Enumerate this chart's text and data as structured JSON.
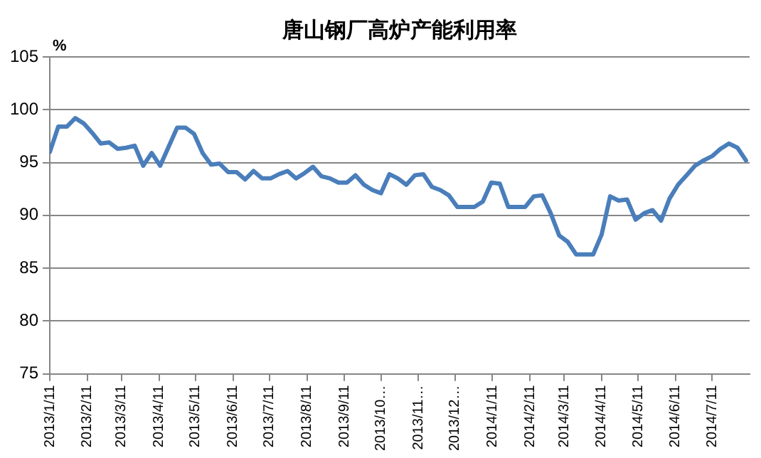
{
  "chart_data": {
    "type": "line",
    "title": "唐山钢厂高炉产能利用率",
    "ylabel": "%",
    "x": [
      "2013-01-11",
      "2013-01-18",
      "2013-01-25",
      "2013-02-01",
      "2013-02-08",
      "2013-02-15",
      "2013-02-22",
      "2013-03-01",
      "2013-03-08",
      "2013-03-15",
      "2013-03-22",
      "2013-03-29",
      "2013-04-05",
      "2013-04-12",
      "2013-04-19",
      "2013-04-26",
      "2013-05-03",
      "2013-05-10",
      "2013-05-17",
      "2013-05-24",
      "2013-05-31",
      "2013-06-07",
      "2013-06-14",
      "2013-06-21",
      "2013-06-28",
      "2013-07-05",
      "2013-07-12",
      "2013-07-19",
      "2013-07-26",
      "2013-08-02",
      "2013-08-09",
      "2013-08-16",
      "2013-08-23",
      "2013-08-30",
      "2013-09-06",
      "2013-09-13",
      "2013-09-20",
      "2013-09-27",
      "2013-10-04",
      "2013-10-11",
      "2013-10-18",
      "2013-10-25",
      "2013-11-01",
      "2013-11-08",
      "2013-11-15",
      "2013-11-22",
      "2013-11-29",
      "2013-12-06",
      "2013-12-13",
      "2013-12-20",
      "2013-12-27",
      "2014-01-03",
      "2014-01-10",
      "2014-01-17",
      "2014-01-24",
      "2014-01-31",
      "2014-02-07",
      "2014-02-14",
      "2014-02-21",
      "2014-02-28",
      "2014-03-07",
      "2014-03-14",
      "2014-03-21",
      "2014-03-28",
      "2014-04-04",
      "2014-04-11",
      "2014-04-18",
      "2014-04-25",
      "2014-05-02",
      "2014-05-09",
      "2014-05-16",
      "2014-05-23",
      "2014-05-30",
      "2014-06-06",
      "2014-06-13",
      "2014-06-20",
      "2014-06-27",
      "2014-07-04",
      "2014-07-11",
      "2014-07-18",
      "2014-07-25",
      "2014-08-01",
      "2014-08-08"
    ],
    "series": [
      {
        "color": "#4a7ebb",
        "values": [
          96.0,
          98.4,
          98.4,
          99.2,
          98.7,
          97.8,
          96.8,
          96.9,
          96.3,
          96.4,
          96.6,
          94.7,
          95.9,
          94.7,
          96.5,
          98.3,
          98.3,
          97.7,
          95.9,
          94.8,
          94.9,
          94.1,
          94.1,
          93.4,
          94.2,
          93.5,
          93.5,
          93.9,
          94.2,
          93.5,
          94.0,
          94.6,
          93.7,
          93.5,
          93.1,
          93.1,
          93.8,
          92.9,
          92.4,
          92.1,
          93.9,
          93.5,
          92.9,
          93.8,
          93.9,
          92.7,
          92.4,
          91.9,
          90.8,
          90.8,
          90.8,
          91.3,
          93.1,
          93.0,
          90.8,
          90.8,
          90.8,
          91.8,
          91.9,
          90.2,
          88.1,
          87.5,
          86.3,
          86.3,
          86.3,
          88.2,
          91.8,
          91.4,
          91.5,
          89.6,
          90.2,
          90.5,
          89.5,
          91.6,
          92.9,
          93.8,
          94.7,
          95.2,
          95.6,
          96.3,
          96.8,
          96.4,
          95.2
        ]
      }
    ],
    "xlim": [
      "2013-01-11",
      "2014-08-11"
    ],
    "xticks": [
      {
        "value": "2013-01-11",
        "label": "2013/1/11"
      },
      {
        "value": "2013-02-11",
        "label": "2013/2/11"
      },
      {
        "value": "2013-03-11",
        "label": "2013/3/11"
      },
      {
        "value": "2013-04-11",
        "label": "2013/4/11"
      },
      {
        "value": "2013-05-11",
        "label": "2013/5/11"
      },
      {
        "value": "2013-06-11",
        "label": "2013/6/11"
      },
      {
        "value": "2013-07-11",
        "label": "2013/7/11"
      },
      {
        "value": "2013-08-11",
        "label": "2013/8/11"
      },
      {
        "value": "2013-09-11",
        "label": "2013/9/11"
      },
      {
        "value": "2013-10-11",
        "label": "2013/10…"
      },
      {
        "value": "2013-11-11",
        "label": "2013/11…"
      },
      {
        "value": "2013-12-11",
        "label": "2013/12…"
      },
      {
        "value": "2014-01-11",
        "label": "2014/1/11"
      },
      {
        "value": "2014-02-11",
        "label": "2014/2/11"
      },
      {
        "value": "2014-03-11",
        "label": "2014/3/11"
      },
      {
        "value": "2014-04-11",
        "label": "2014/4/11"
      },
      {
        "value": "2014-05-11",
        "label": "2014/5/11"
      },
      {
        "value": "2014-06-11",
        "label": "2014/6/11"
      },
      {
        "value": "2014-07-11",
        "label": "2014/7/11"
      }
    ],
    "ylim": [
      75,
      105
    ],
    "yticks": [
      75,
      80,
      85,
      90,
      95,
      100,
      105
    ],
    "grid": "y",
    "legend": false,
    "marker": "none",
    "line_style": "solid"
  }
}
